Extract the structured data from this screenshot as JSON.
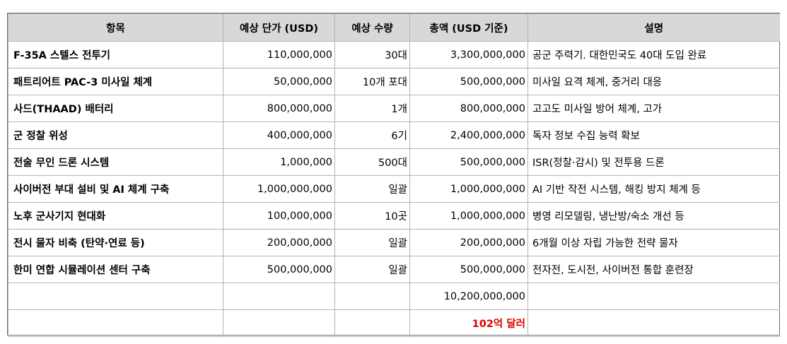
{
  "headers": [
    "항목",
    "예상 단가 (USD)",
    "예상 수량",
    "총액 (USD 기준)",
    "설명"
  ],
  "rows": [
    {
      "item": "F-35A 스텔스 전투기",
      "unit_price": "110,000,000",
      "qty": "30대",
      "total": "3,300,000,000",
      "desc": "공군 주력기. 대한민국도 40대 도입 완료"
    },
    {
      "item": "패트리어트 PAC-3 미사일 체계",
      "unit_price": "50,000,000",
      "qty": "10개 포대",
      "total": "500,000,000",
      "desc": "미사일 요격 체계, 중거리 대응"
    },
    {
      "item": "사드(THAAD) 배터리",
      "unit_price": "800,000,000",
      "qty": "1개",
      "total": "800,000,000",
      "desc": "고고도 미사일 방어 체계, 고가"
    },
    {
      "item": "군 정찰 위성",
      "unit_price": "400,000,000",
      "qty": "6기",
      "total": "2,400,000,000",
      "desc": "독자 정보 수집 능력 확보"
    },
    {
      "item": "전술 무인 드론 시스템",
      "unit_price": "1,000,000",
      "qty": "500대",
      "total": "500,000,000",
      "desc": "ISR(정찰·감시) 및 전투용 드론"
    },
    {
      "item": "사이버전 부대 설비 및 AI 체계 구축",
      "unit_price": "1,000,000,000",
      "qty": "일괄",
      "total": "1,000,000,000",
      "desc": "AI 기반 작전 시스템, 해킹 방지 체계 등"
    },
    {
      "item": "노후 군사기지 현대화",
      "unit_price": "100,000,000",
      "qty": "10곳",
      "total": "1,000,000,000",
      "desc": "병영 리모델링, 냉난방/숙소 개선 등"
    },
    {
      "item": "전시 물자 비축 (탄약·연료 등)",
      "unit_price": "200,000,000",
      "qty": "일괄",
      "total": "200,000,000",
      "desc": "6개월 이상 자립 가능한 전략 물자"
    },
    {
      "item": "한미 연합 시뮬레이션 센터 구축",
      "unit_price": "500,000,000",
      "qty": "일괄",
      "total": "500,000,000",
      "desc": "전자전, 도시전, 사이버전 통합 훈련장"
    }
  ],
  "sum_total": "10,200,000,000",
  "sum_label": "102억 달러",
  "colors": {
    "header_bg": "#d8d8d8",
    "accent_red": "#e00000",
    "grid": "#b3b3b3"
  }
}
